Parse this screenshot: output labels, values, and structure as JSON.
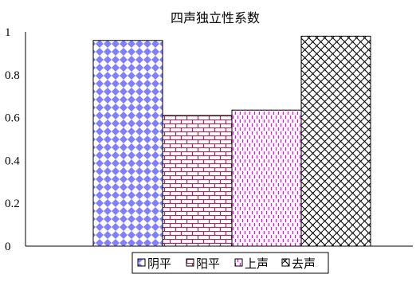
{
  "chart_data": {
    "type": "bar",
    "title": "四声独立性系数",
    "categories": [
      "阴平",
      "阳平",
      "上声",
      "去声"
    ],
    "series": [
      {
        "name": "阴平",
        "value": 0.96,
        "color": "#8080ff",
        "pattern": "diamonds"
      },
      {
        "name": "阳平",
        "value": 0.61,
        "color": "#993366",
        "pattern": "bricks"
      },
      {
        "name": "上声",
        "value": 0.635,
        "color": "#ff00ff",
        "pattern": "dashes"
      },
      {
        "name": "去声",
        "value": 0.98,
        "color": "#000000",
        "pattern": "weave"
      }
    ],
    "yticks": [
      "0",
      "0.2",
      "0.4",
      "0.6",
      "0.8",
      "1"
    ],
    "ylim": [
      0,
      1
    ],
    "grid": false,
    "legend_position": "bottom"
  }
}
